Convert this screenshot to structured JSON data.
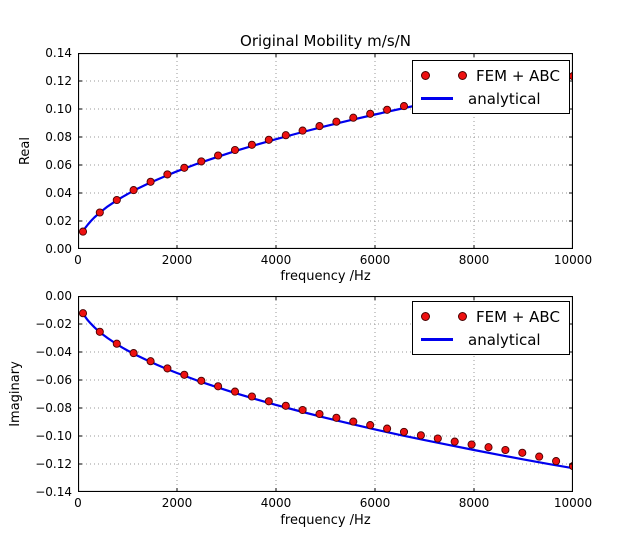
{
  "figure_title": "Original Mobility m/s/N",
  "colors": {
    "background": "#ffffff",
    "axis": "#000000",
    "grid": "#999999",
    "analytical_line": "#0000ee",
    "fem_marker_fill": "#ee1111",
    "fem_marker_edge": "#4a0000",
    "legend_border": "#000000",
    "text": "#000000"
  },
  "chart_data": [
    {
      "type": "line+scatter",
      "title": "Original Mobility m/s/N",
      "xlabel": "frequency /Hz",
      "ylabel": "Real",
      "xlim": [
        0,
        10000
      ],
      "ylim": [
        0,
        0.14
      ],
      "xticks": [
        0,
        2000,
        4000,
        6000,
        8000,
        10000
      ],
      "xtick_labels": [
        "0",
        "2000",
        "4000",
        "6000",
        "8000",
        "10000"
      ],
      "yticks": [
        0,
        0.02,
        0.04,
        0.06,
        0.08,
        0.1,
        0.12,
        0.14
      ],
      "ytick_labels": [
        "0.00",
        "0.02",
        "0.04",
        "0.06",
        "0.08",
        "0.10",
        "0.12",
        "0.14"
      ],
      "grid": true,
      "legend": {
        "loc": "upper right",
        "entries": [
          "FEM + ABC",
          "analytical"
        ]
      },
      "series": [
        {
          "name": "FEM + ABC",
          "style": "scatter",
          "x": [
            100,
            441,
            783,
            1124,
            1466,
            1807,
            2148,
            2490,
            2831,
            3172,
            3514,
            3855,
            4197,
            4538,
            4879,
            5221,
            5562,
            5903,
            6245,
            6586,
            6928,
            7269,
            7610,
            7952,
            8293,
            8634,
            8976,
            9317,
            9659,
            10000
          ],
          "y": [
            0.0124,
            0.0261,
            0.035,
            0.0421,
            0.048,
            0.0533,
            0.058,
            0.0626,
            0.0668,
            0.0707,
            0.0744,
            0.078,
            0.0813,
            0.0846,
            0.0878,
            0.0909,
            0.0938,
            0.0966,
            0.0994,
            0.1021,
            0.1046,
            0.1071,
            0.1094,
            0.1117,
            0.1139,
            0.116,
            0.1181,
            0.1202,
            0.1222,
            0.1235
          ]
        },
        {
          "name": "analytical",
          "style": "line",
          "x": [
            100,
            150,
            200,
            260,
            330,
            410,
            500,
            600,
            700,
            800,
            900,
            1000,
            1200,
            1400,
            1600,
            1800,
            2000,
            2400,
            2800,
            3200,
            3600,
            4000,
            4500,
            5000,
            5500,
            6000,
            6500,
            7000,
            7500,
            8000,
            8500,
            9000,
            9500,
            10000
          ],
          "y": [
            0.0124,
            0.0152,
            0.0175,
            0.02,
            0.0225,
            0.0251,
            0.0277,
            0.0304,
            0.0328,
            0.0351,
            0.0372,
            0.0392,
            0.043,
            0.0464,
            0.0496,
            0.0526,
            0.0555,
            0.0608,
            0.0656,
            0.0702,
            0.0744,
            0.0784,
            0.0832,
            0.0877,
            0.092,
            0.0961,
            0.1,
            0.1038,
            0.1074,
            0.1109,
            0.1143,
            0.1176,
            0.1209,
            0.124
          ]
        }
      ]
    },
    {
      "type": "line+scatter",
      "title": "",
      "xlabel": "frequency /Hz",
      "ylabel": "Imaginary",
      "xlim": [
        0,
        10000
      ],
      "ylim": [
        -0.14,
        0
      ],
      "xticks": [
        0,
        2000,
        4000,
        6000,
        8000,
        10000
      ],
      "xtick_labels": [
        "0",
        "2000",
        "4000",
        "6000",
        "8000",
        "10000"
      ],
      "yticks": [
        -0.14,
        -0.12,
        -0.1,
        -0.08,
        -0.06,
        -0.04,
        -0.02,
        0
      ],
      "ytick_labels": [
        "−0.14",
        "−0.12",
        "−0.10",
        "−0.08",
        "−0.06",
        "−0.04",
        "−0.02",
        "0.00"
      ],
      "grid": true,
      "legend": {
        "loc": "upper right",
        "entries": [
          "FEM + ABC",
          "analytical"
        ]
      },
      "series": [
        {
          "name": "FEM + ABC",
          "style": "scatter",
          "x": [
            100,
            441,
            783,
            1124,
            1466,
            1807,
            2148,
            2490,
            2831,
            3172,
            3514,
            3855,
            4197,
            4538,
            4879,
            5221,
            5562,
            5903,
            6245,
            6586,
            6928,
            7269,
            7610,
            7952,
            8293,
            8634,
            8976,
            9317,
            9659,
            10000
          ],
          "y": [
            -0.0123,
            -0.0256,
            -0.0341,
            -0.0408,
            -0.0466,
            -0.0517,
            -0.0563,
            -0.0606,
            -0.0645,
            -0.0683,
            -0.0718,
            -0.0752,
            -0.0784,
            -0.0814,
            -0.0843,
            -0.087,
            -0.0897,
            -0.0922,
            -0.0947,
            -0.0971,
            -0.0995,
            -0.1018,
            -0.104,
            -0.1061,
            -0.108,
            -0.11,
            -0.112,
            -0.1147,
            -0.1179,
            -0.1215
          ]
        },
        {
          "name": "analytical",
          "style": "line",
          "x": [
            100,
            150,
            200,
            260,
            330,
            410,
            500,
            600,
            700,
            800,
            900,
            1000,
            1200,
            1400,
            1600,
            1800,
            2000,
            2400,
            2800,
            3200,
            3600,
            4000,
            4500,
            5000,
            5500,
            6000,
            6500,
            7000,
            7500,
            8000,
            8500,
            9000,
            9500,
            10000
          ],
          "y": [
            -0.0123,
            -0.0151,
            -0.0174,
            -0.0198,
            -0.0223,
            -0.0249,
            -0.0275,
            -0.0301,
            -0.0325,
            -0.0348,
            -0.0369,
            -0.0389,
            -0.0426,
            -0.046,
            -0.0492,
            -0.0522,
            -0.055,
            -0.0603,
            -0.0651,
            -0.0696,
            -0.0738,
            -0.0778,
            -0.0825,
            -0.087,
            -0.0912,
            -0.0953,
            -0.0992,
            -0.1029,
            -0.1065,
            -0.11,
            -0.1134,
            -0.1167,
            -0.1199,
            -0.123
          ]
        }
      ]
    }
  ]
}
